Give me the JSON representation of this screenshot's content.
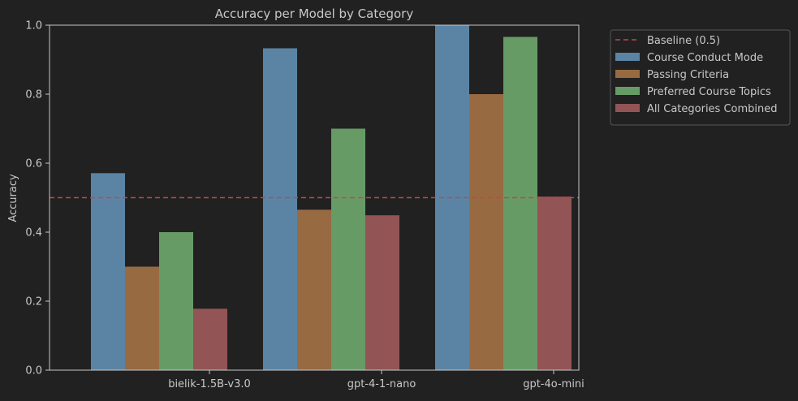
{
  "chart_data": {
    "type": "bar",
    "title": "Accuracy per Model by Category",
    "xlabel": "",
    "ylabel": "Accuracy",
    "ylim": [
      0,
      1.0
    ],
    "yticks": [
      "0.0",
      "0.2",
      "0.4",
      "0.6",
      "0.8",
      "1.0"
    ],
    "categories": [
      "bielik-1.5B-v3.0",
      "gpt-4-1-nano",
      "gpt-4o-mini"
    ],
    "series": [
      {
        "name": "Course Conduct Mode",
        "color": "#5b84a4",
        "values": [
          0.571,
          0.933,
          1.0
        ]
      },
      {
        "name": "Passing Criteria",
        "color": "#976a42",
        "values": [
          0.3,
          0.465,
          0.8
        ]
      },
      {
        "name": "Preferred Course Topics",
        "color": "#679b66",
        "values": [
          0.4,
          0.7,
          0.966
        ]
      },
      {
        "name": "All Categories Combined",
        "color": "#935455",
        "values": [
          0.178,
          0.449,
          0.503
        ]
      }
    ],
    "baseline": {
      "name": "Baseline (0.5)",
      "value": 0.5,
      "color": "#c0484a",
      "style": "dashed"
    },
    "grid": false,
    "legend_position": "outside-top-right",
    "background": "#212121",
    "text_color": "#c8c8c8"
  }
}
